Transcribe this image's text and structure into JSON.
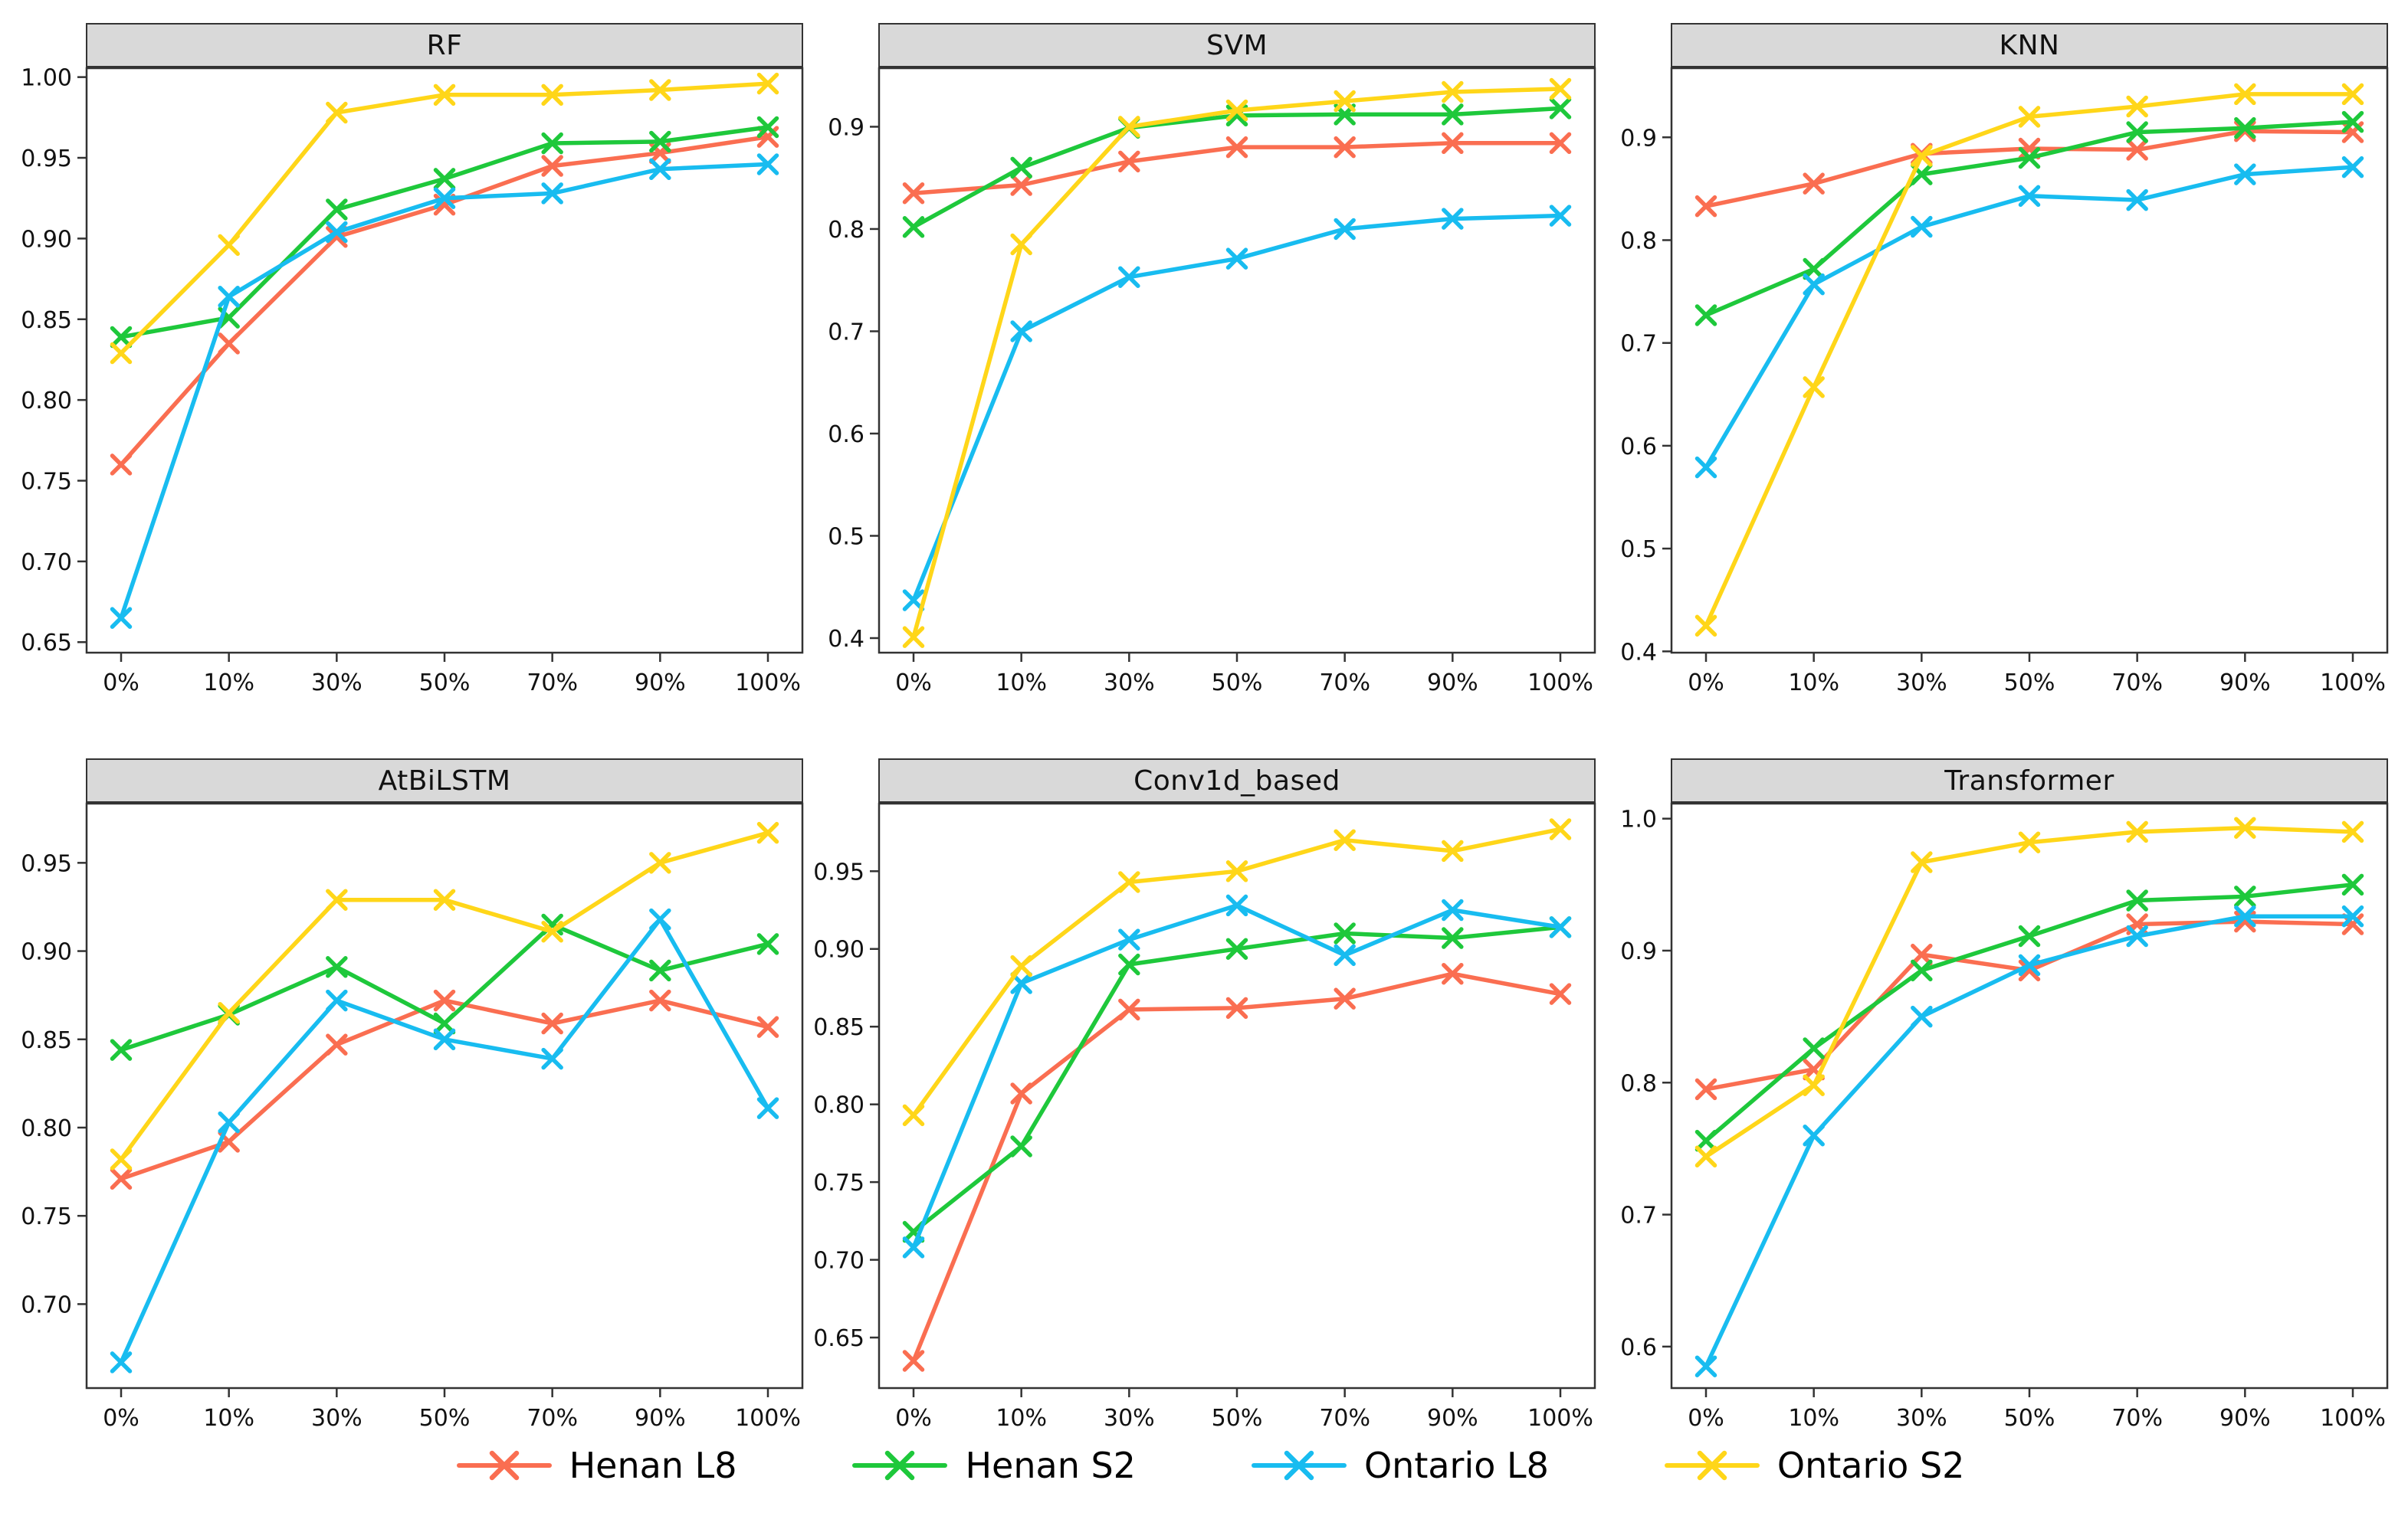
{
  "figure": {
    "background": "#ffffff",
    "panel_header_bg": "#d9d9d9",
    "axis_color": "#333333",
    "tick_label_color": "#111111"
  },
  "series_meta": [
    {
      "name": "Henan L8",
      "color": "#fa6e51"
    },
    {
      "name": "Henan S2",
      "color": "#1ec83b"
    },
    {
      "name": "Ontario L8",
      "color": "#18bcf0"
    },
    {
      "name": "Ontario S2",
      "color": "#ffd619"
    }
  ],
  "legend": {
    "marker": "x-on-line"
  },
  "x_categories": [
    "0%",
    "10%",
    "30%",
    "50%",
    "70%",
    "90%",
    "100%"
  ],
  "chart_data": [
    {
      "type": "line",
      "title": "RF",
      "categories": [
        "0%",
        "10%",
        "30%",
        "50%",
        "70%",
        "90%",
        "100%"
      ],
      "ylim": [
        0.643,
        1.006
      ],
      "yticks": [
        {
          "v": 0.65,
          "label": "0.65"
        },
        {
          "v": 0.7,
          "label": "0.70"
        },
        {
          "v": 0.75,
          "label": "0.75"
        },
        {
          "v": 0.8,
          "label": "0.80"
        },
        {
          "v": 0.85,
          "label": "0.85"
        },
        {
          "v": 0.9,
          "label": "0.90"
        },
        {
          "v": 0.95,
          "label": "0.95"
        },
        {
          "v": 1.0,
          "label": "1.00"
        }
      ],
      "grid": false,
      "legend_position": "figure-bottom",
      "series": [
        {
          "name": "Henan L8",
          "values": [
            0.76,
            0.835,
            0.901,
            0.921,
            0.945,
            0.953,
            0.963
          ]
        },
        {
          "name": "Henan S2",
          "values": [
            0.839,
            0.851,
            0.918,
            0.937,
            0.959,
            0.96,
            0.969
          ]
        },
        {
          "name": "Ontario L8",
          "values": [
            0.665,
            0.864,
            0.904,
            0.925,
            0.928,
            0.943,
            0.946
          ]
        },
        {
          "name": "Ontario S2",
          "values": [
            0.829,
            0.896,
            0.978,
            0.989,
            0.989,
            0.992,
            0.996
          ]
        }
      ]
    },
    {
      "type": "line",
      "title": "SVM",
      "categories": [
        "0%",
        "10%",
        "30%",
        "50%",
        "70%",
        "90%",
        "100%"
      ],
      "ylim": [
        0.385,
        0.958
      ],
      "yticks": [
        {
          "v": 0.4,
          "label": "0.4"
        },
        {
          "v": 0.5,
          "label": "0.5"
        },
        {
          "v": 0.6,
          "label": "0.6"
        },
        {
          "v": 0.7,
          "label": "0.7"
        },
        {
          "v": 0.8,
          "label": "0.8"
        },
        {
          "v": 0.9,
          "label": "0.9"
        }
      ],
      "grid": false,
      "legend_position": "figure-bottom",
      "series": [
        {
          "name": "Henan L8",
          "values": [
            0.835,
            0.843,
            0.866,
            0.88,
            0.88,
            0.884,
            0.884
          ]
        },
        {
          "name": "Henan S2",
          "values": [
            0.802,
            0.86,
            0.899,
            0.911,
            0.912,
            0.912,
            0.918
          ]
        },
        {
          "name": "Ontario L8",
          "values": [
            0.437,
            0.7,
            0.753,
            0.771,
            0.8,
            0.81,
            0.813
          ]
        },
        {
          "name": "Ontario S2",
          "values": [
            0.401,
            0.785,
            0.9,
            0.916,
            0.925,
            0.934,
            0.937
          ]
        }
      ]
    },
    {
      "type": "line",
      "title": "KNN",
      "categories": [
        "0%",
        "10%",
        "30%",
        "50%",
        "70%",
        "90%",
        "100%"
      ],
      "ylim": [
        0.398,
        0.968
      ],
      "yticks": [
        {
          "v": 0.4,
          "label": "0.4"
        },
        {
          "v": 0.5,
          "label": "0.5"
        },
        {
          "v": 0.6,
          "label": "0.6"
        },
        {
          "v": 0.7,
          "label": "0.7"
        },
        {
          "v": 0.8,
          "label": "0.8"
        },
        {
          "v": 0.9,
          "label": "0.9"
        }
      ],
      "grid": false,
      "legend_position": "figure-bottom",
      "series": [
        {
          "name": "Henan L8",
          "values": [
            0.833,
            0.855,
            0.884,
            0.889,
            0.888,
            0.906,
            0.905
          ]
        },
        {
          "name": "Henan S2",
          "values": [
            0.727,
            0.772,
            0.864,
            0.88,
            0.905,
            0.909,
            0.915
          ]
        },
        {
          "name": "Ontario L8",
          "values": [
            0.579,
            0.757,
            0.813,
            0.843,
            0.839,
            0.864,
            0.871
          ]
        },
        {
          "name": "Ontario S2",
          "values": [
            0.425,
            0.657,
            0.882,
            0.92,
            0.93,
            0.942,
            0.942
          ]
        }
      ]
    },
    {
      "type": "line",
      "title": "AtBiLSTM",
      "categories": [
        "0%",
        "10%",
        "30%",
        "50%",
        "70%",
        "90%",
        "100%"
      ],
      "ylim": [
        0.652,
        0.984
      ],
      "yticks": [
        {
          "v": 0.7,
          "label": "0.70"
        },
        {
          "v": 0.75,
          "label": "0.75"
        },
        {
          "v": 0.8,
          "label": "0.80"
        },
        {
          "v": 0.85,
          "label": "0.85"
        },
        {
          "v": 0.9,
          "label": "0.90"
        },
        {
          "v": 0.95,
          "label": "0.95"
        }
      ],
      "grid": false,
      "legend_position": "figure-bottom",
      "series": [
        {
          "name": "Henan L8",
          "values": [
            0.771,
            0.792,
            0.847,
            0.872,
            0.859,
            0.872,
            0.857
          ]
        },
        {
          "name": "Henan S2",
          "values": [
            0.844,
            0.864,
            0.891,
            0.859,
            0.915,
            0.889,
            0.904
          ]
        },
        {
          "name": "Ontario L8",
          "values": [
            0.667,
            0.803,
            0.872,
            0.85,
            0.839,
            0.918,
            0.811
          ]
        },
        {
          "name": "Ontario S2",
          "values": [
            0.782,
            0.865,
            0.929,
            0.929,
            0.911,
            0.95,
            0.967
          ]
        }
      ]
    },
    {
      "type": "line",
      "title": "Conv1d_based",
      "categories": [
        "0%",
        "10%",
        "30%",
        "50%",
        "70%",
        "90%",
        "100%"
      ],
      "ylim": [
        0.617,
        0.994
      ],
      "yticks": [
        {
          "v": 0.65,
          "label": "0.65"
        },
        {
          "v": 0.7,
          "label": "0.70"
        },
        {
          "v": 0.75,
          "label": "0.75"
        },
        {
          "v": 0.8,
          "label": "0.80"
        },
        {
          "v": 0.85,
          "label": "0.85"
        },
        {
          "v": 0.9,
          "label": "0.90"
        },
        {
          "v": 0.95,
          "label": "0.95"
        }
      ],
      "grid": false,
      "legend_position": "figure-bottom",
      "series": [
        {
          "name": "Henan L8",
          "values": [
            0.635,
            0.807,
            0.861,
            0.862,
            0.868,
            0.884,
            0.871
          ]
        },
        {
          "name": "Henan S2",
          "values": [
            0.718,
            0.773,
            0.89,
            0.9,
            0.91,
            0.907,
            0.914
          ]
        },
        {
          "name": "Ontario L8",
          "values": [
            0.708,
            0.878,
            0.906,
            0.928,
            0.896,
            0.925,
            0.914
          ]
        },
        {
          "name": "Ontario S2",
          "values": [
            0.793,
            0.889,
            0.943,
            0.95,
            0.97,
            0.963,
            0.977
          ]
        }
      ]
    },
    {
      "type": "line",
      "title": "Transformer",
      "categories": [
        "0%",
        "10%",
        "30%",
        "50%",
        "70%",
        "90%",
        "100%"
      ],
      "ylim": [
        0.568,
        1.012
      ],
      "yticks": [
        {
          "v": 0.6,
          "label": "0.6"
        },
        {
          "v": 0.7,
          "label": "0.7"
        },
        {
          "v": 0.8,
          "label": "0.8"
        },
        {
          "v": 0.9,
          "label": "0.9"
        },
        {
          "v": 1.0,
          "label": "1.0"
        }
      ],
      "grid": false,
      "legend_position": "figure-bottom",
      "series": [
        {
          "name": "Henan L8",
          "values": [
            0.795,
            0.81,
            0.897,
            0.885,
            0.92,
            0.922,
            0.92
          ]
        },
        {
          "name": "Henan S2",
          "values": [
            0.756,
            0.826,
            0.885,
            0.911,
            0.938,
            0.941,
            0.95
          ]
        },
        {
          "name": "Ontario L8",
          "values": [
            0.585,
            0.76,
            0.85,
            0.889,
            0.911,
            0.926,
            0.926
          ]
        },
        {
          "name": "Ontario S2",
          "values": [
            0.744,
            0.798,
            0.967,
            0.982,
            0.99,
            0.993,
            0.99
          ]
        }
      ]
    }
  ]
}
